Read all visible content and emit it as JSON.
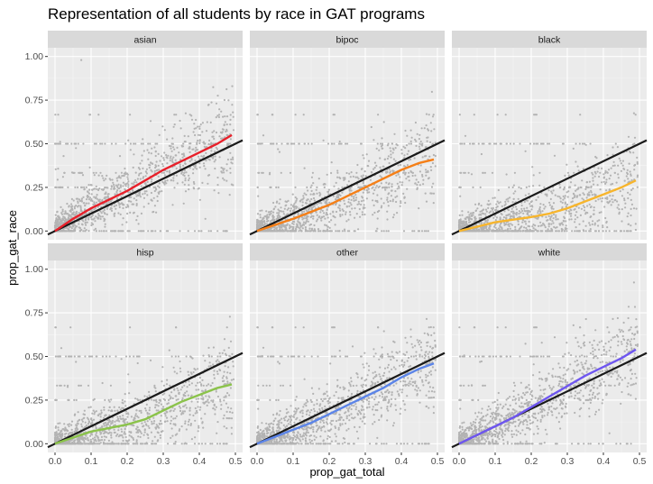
{
  "chart_data": {
    "type": "scatter",
    "title": "Representation of all students by race in GAT programs",
    "xlabel": "prop_gat_total",
    "ylabel": "prop_gat_race",
    "xlim": [
      -0.02,
      0.52
    ],
    "ylim": [
      -0.05,
      1.05
    ],
    "x_ticks": [
      0.0,
      0.1,
      0.2,
      0.3,
      0.4,
      0.5
    ],
    "x_tick_labels": [
      "0.0",
      "0.1",
      "0.2",
      "0.3",
      "0.4",
      "0.5"
    ],
    "y_ticks": [
      0.0,
      0.25,
      0.5,
      0.75,
      1.0
    ],
    "y_tick_labels": [
      "0.00",
      "0.25",
      "0.50",
      "0.75",
      "1.00"
    ],
    "grid": true,
    "layout": {
      "rows": 2,
      "cols": 3
    },
    "reference_line": {
      "slope": 1,
      "intercept": 0,
      "color": "#1a1a1a"
    },
    "point_color": "#b3b3b3",
    "panel_background": "#ebebeb",
    "strip_background": "#d9d9d9",
    "facets": [
      {
        "name": "asian",
        "trend_color": "#e8202a",
        "trend": {
          "x": [
            0.0,
            0.05,
            0.1,
            0.15,
            0.2,
            0.25,
            0.3,
            0.35,
            0.4,
            0.45,
            0.49
          ],
          "y": [
            0.0,
            0.07,
            0.13,
            0.18,
            0.23,
            0.29,
            0.35,
            0.4,
            0.45,
            0.5,
            0.55
          ]
        }
      },
      {
        "name": "bipoc",
        "trend_color": "#f57f17",
        "trend": {
          "x": [
            0.0,
            0.05,
            0.1,
            0.15,
            0.2,
            0.25,
            0.3,
            0.35,
            0.4,
            0.45,
            0.49
          ],
          "y": [
            0.0,
            0.035,
            0.07,
            0.11,
            0.15,
            0.2,
            0.25,
            0.3,
            0.35,
            0.39,
            0.41
          ]
        }
      },
      {
        "name": "black",
        "trend_color": "#f7b52c",
        "trend": {
          "x": [
            0.0,
            0.05,
            0.1,
            0.15,
            0.2,
            0.25,
            0.3,
            0.35,
            0.4,
            0.45,
            0.49
          ],
          "y": [
            0.0,
            0.025,
            0.05,
            0.065,
            0.08,
            0.1,
            0.13,
            0.17,
            0.21,
            0.25,
            0.29
          ]
        }
      },
      {
        "name": "hisp",
        "trend_color": "#8bc34a",
        "trend": {
          "x": [
            0.0,
            0.05,
            0.1,
            0.15,
            0.2,
            0.25,
            0.3,
            0.35,
            0.4,
            0.45,
            0.49
          ],
          "y": [
            0.0,
            0.035,
            0.07,
            0.09,
            0.11,
            0.14,
            0.19,
            0.24,
            0.28,
            0.32,
            0.34
          ]
        }
      },
      {
        "name": "other",
        "trend_color": "#5b84e8",
        "trend": {
          "x": [
            0.0,
            0.05,
            0.1,
            0.15,
            0.2,
            0.25,
            0.3,
            0.35,
            0.4,
            0.45,
            0.49
          ],
          "y": [
            0.0,
            0.04,
            0.08,
            0.12,
            0.17,
            0.22,
            0.27,
            0.32,
            0.38,
            0.43,
            0.46
          ]
        }
      },
      {
        "name": "white",
        "trend_color": "#6e56f0",
        "trend": {
          "x": [
            0.0,
            0.05,
            0.1,
            0.15,
            0.2,
            0.25,
            0.3,
            0.35,
            0.4,
            0.45,
            0.49
          ],
          "y": [
            0.0,
            0.05,
            0.1,
            0.15,
            0.21,
            0.27,
            0.33,
            0.39,
            0.44,
            0.49,
            0.54
          ]
        }
      }
    ]
  }
}
